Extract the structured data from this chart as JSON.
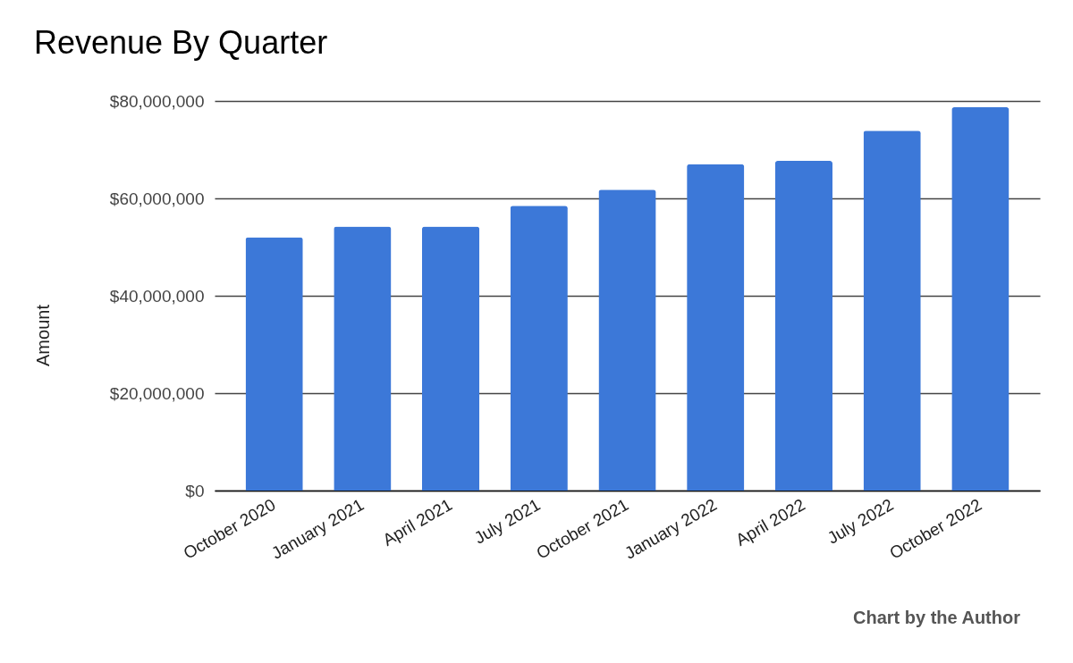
{
  "chart_data": {
    "type": "bar",
    "title": "Revenue By Quarter",
    "ylabel": "Amount",
    "categories": [
      "October 2020",
      "January 2021",
      "April 2021",
      "July 2021",
      "October 2021",
      "January 2022",
      "April 2022",
      "July 2022",
      "October 2022"
    ],
    "values": [
      52000000,
      54200000,
      54200000,
      58500000,
      61800000,
      67000000,
      67700000,
      73900000,
      78700000
    ],
    "color": "#3c78d8",
    "ylim": [
      0,
      80000000
    ],
    "yticks": [
      {
        "value": 0,
        "label": "$0"
      },
      {
        "value": 20000000,
        "label": "$20,000,000"
      },
      {
        "value": 40000000,
        "label": "$40,000,000"
      },
      {
        "value": 60000000,
        "label": "$60,000,000"
      },
      {
        "value": 80000000,
        "label": "$80,000,000"
      }
    ],
    "grid": true,
    "annotations": [
      "Chart by the Author"
    ]
  }
}
